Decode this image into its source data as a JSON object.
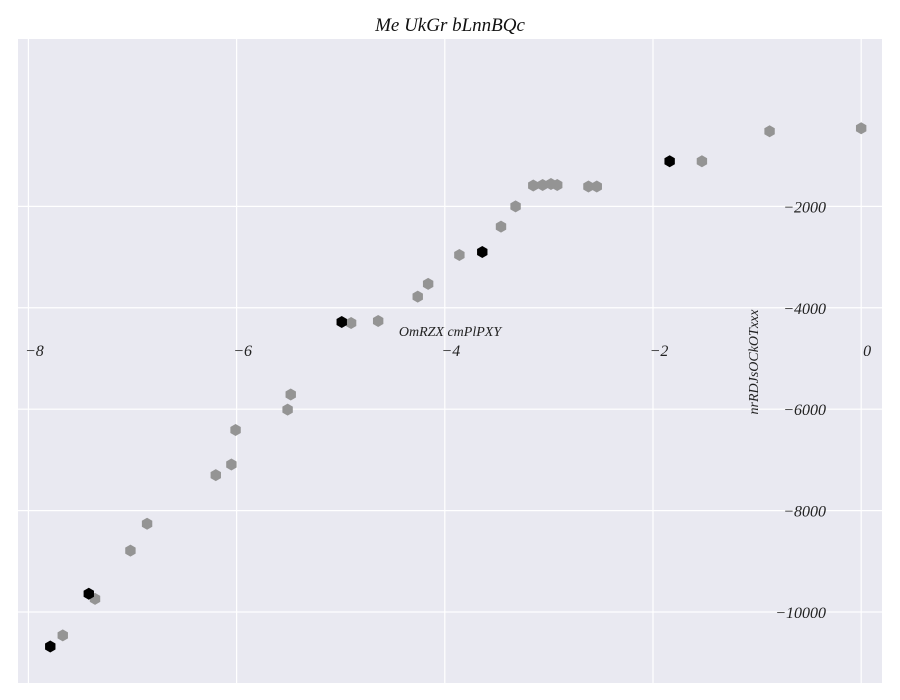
{
  "chart_data": {
    "type": "scatter",
    "title": "Me UkGr bLnnBQc",
    "xlabel": "OmRZX cmPlPXY",
    "ylabel": "nrRDJsOCkOTxxx",
    "xlim": [
      -8.1,
      0.2
    ],
    "ylim": [
      -11400,
      1300
    ],
    "xticks": [
      -8,
      -6,
      -4,
      -2,
      0
    ],
    "xtick_labels": [
      "−8",
      "−6",
      "−4",
      "−2",
      "0"
    ],
    "yticks": [
      -2000,
      -4000,
      -6000,
      -8000,
      -10000
    ],
    "ytick_labels": [
      "−2000",
      "−4000",
      "−6000",
      "−8000",
      "−10000"
    ],
    "grid": true,
    "colors": {
      "background": "#e9e9f1",
      "grid": "#ffffff",
      "gray": "#949494",
      "black": "#000000"
    },
    "series": [
      {
        "color": "#949494",
        "x": [
          0.0,
          -0.88,
          -1.53,
          -2.54,
          -2.62,
          -2.92,
          -2.98,
          -3.06,
          -3.15,
          -3.32,
          -3.46,
          -3.86,
          -4.16,
          -4.26,
          -4.64,
          -4.9,
          -5.48,
          -5.51,
          -6.01,
          -6.05,
          -6.2,
          -6.86,
          -7.02,
          -7.36,
          -7.67
        ],
        "y": [
          -460,
          -520,
          -1110,
          -1610,
          -1610,
          -1580,
          -1560,
          -1580,
          -1590,
          -2000,
          -2400,
          -2960,
          -3530,
          -3780,
          -4260,
          -4300,
          -5710,
          -6010,
          -6410,
          -7090,
          -7300,
          -8260,
          -8790,
          -9740,
          -10460
        ]
      },
      {
        "color": "#000000",
        "x": [
          -1.84,
          -3.64,
          -4.99,
          -7.42,
          -7.79
        ],
        "y": [
          -1110,
          -2900,
          -4280,
          -9640,
          -10680
        ]
      }
    ]
  }
}
